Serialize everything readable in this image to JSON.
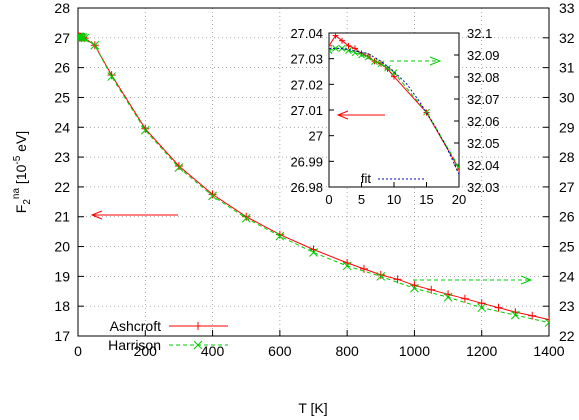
{
  "chart_data": [
    {
      "type": "line",
      "xlabel": "T [K]",
      "ylabel_main": "F",
      "ylabel_sub": "2",
      "ylabel_sup": "na",
      "ylabel_rest": " [10",
      "ylabel_exp": "-5",
      "ylabel_unit": " eV]",
      "xlim": [
        0,
        1400
      ],
      "ylim": [
        17,
        28
      ],
      "y2lim": [
        22,
        33
      ],
      "xticks": [
        "0",
        "200",
        "400",
        "600",
        "800",
        "1000",
        "1200",
        "1400"
      ],
      "yticks": [
        "17",
        "18",
        "19",
        "20",
        "21",
        "22",
        "23",
        "24",
        "25",
        "26",
        "27",
        "28"
      ],
      "y2ticks": [
        "22",
        "23",
        "24",
        "25",
        "26",
        "27",
        "28",
        "29",
        "30",
        "31",
        "32",
        "33"
      ],
      "grid": true,
      "legend_position": "bottom-left",
      "series": [
        {
          "name": "Ashcroft",
          "color": "#ff0000",
          "marker": "plus",
          "x": [
            0,
            1,
            2,
            3,
            4,
            5,
            6,
            7,
            8,
            9,
            10,
            15,
            20,
            50,
            100,
            200,
            300,
            400,
            500,
            600,
            700,
            800,
            850,
            900,
            950,
            1000,
            1050,
            1100,
            1150,
            1200,
            1250,
            1300,
            1350,
            1400
          ],
          "y": [
            27.03,
            27.04,
            27.04,
            27.04,
            27.03,
            27.03,
            27.03,
            27.03,
            27.03,
            27.02,
            27.02,
            27.01,
            26.99,
            26.75,
            25.75,
            23.95,
            22.7,
            21.75,
            21.0,
            20.4,
            19.9,
            19.45,
            19.25,
            19.05,
            18.9,
            18.7,
            18.55,
            18.4,
            18.25,
            18.1,
            17.95,
            17.8,
            17.68,
            17.55
          ]
        },
        {
          "name": "Harrison",
          "color": "#00cc00",
          "marker": "cross",
          "x": [
            0,
            1,
            2,
            3,
            4,
            5,
            6,
            7,
            8,
            9,
            10,
            15,
            20,
            50,
            100,
            200,
            300,
            400,
            500,
            600,
            700,
            800,
            900,
            1000,
            1100,
            1200,
            1300,
            1400
          ],
          "y": [
            27.03,
            27.03,
            27.03,
            27.03,
            27.03,
            27.03,
            27.03,
            27.02,
            27.02,
            27.02,
            27.02,
            27.01,
            26.99,
            26.75,
            25.7,
            23.9,
            22.65,
            21.7,
            20.95,
            20.35,
            19.8,
            19.35,
            19.0,
            18.6,
            18.3,
            17.95,
            17.7,
            17.45
          ]
        }
      ],
      "annotations": [
        {
          "direction": "left",
          "axis": "y1",
          "color": "#ff0000"
        },
        {
          "direction": "right",
          "axis": "y2",
          "color": "#00cc00"
        }
      ]
    },
    {
      "type": "line",
      "inset": true,
      "xlim": [
        0,
        20
      ],
      "ylim": [
        26.98,
        27.04
      ],
      "y2lim": [
        32.03,
        32.1
      ],
      "xticks": [
        "0",
        "5",
        "10",
        "15",
        "20"
      ],
      "yticks": [
        "26.98",
        "26.99",
        "27",
        "27.01",
        "27.02",
        "27.03",
        "27.04"
      ],
      "y2ticks": [
        "32.03",
        "32.04",
        "32.05",
        "32.06",
        "32.07",
        "32.08",
        "32.09",
        "32.1"
      ],
      "grid": false,
      "legend_position": "bottom-center",
      "series": [
        {
          "name": "",
          "color": "#ff0000",
          "marker": "plus",
          "axis": "y1",
          "x": [
            0,
            1,
            2,
            3,
            4,
            5,
            6,
            7,
            8,
            9,
            10,
            15,
            20
          ],
          "y": [
            27.035,
            27.039,
            27.037,
            27.035,
            27.034,
            27.032,
            27.031,
            27.029,
            27.028,
            27.026,
            27.023,
            27.009,
            26.987
          ]
        },
        {
          "name": "",
          "color": "#00cc00",
          "marker": "cross",
          "axis": "y2",
          "x": [
            0,
            1,
            2,
            3,
            4,
            5,
            6,
            7,
            8,
            9,
            10,
            15,
            20
          ],
          "y": [
            32.092,
            32.093,
            32.093,
            32.092,
            32.091,
            32.09,
            32.089,
            32.087,
            32.086,
            32.084,
            32.082,
            32.064,
            32.039
          ]
        },
        {
          "name": "fit",
          "color": "#0000cc",
          "style": "dotted",
          "axis": "y1",
          "x": [
            0,
            2,
            4,
            6,
            8,
            10,
            12,
            14,
            16,
            18,
            20
          ],
          "y": [
            27.034,
            27.034,
            27.033,
            27.032,
            27.029,
            27.025,
            27.02,
            27.013,
            27.005,
            26.996,
            26.985
          ]
        }
      ],
      "annotations": [
        {
          "direction": "left",
          "axis": "y1",
          "color": "#ff0000"
        },
        {
          "direction": "right",
          "axis": "y2",
          "color": "#00cc00"
        }
      ]
    }
  ]
}
